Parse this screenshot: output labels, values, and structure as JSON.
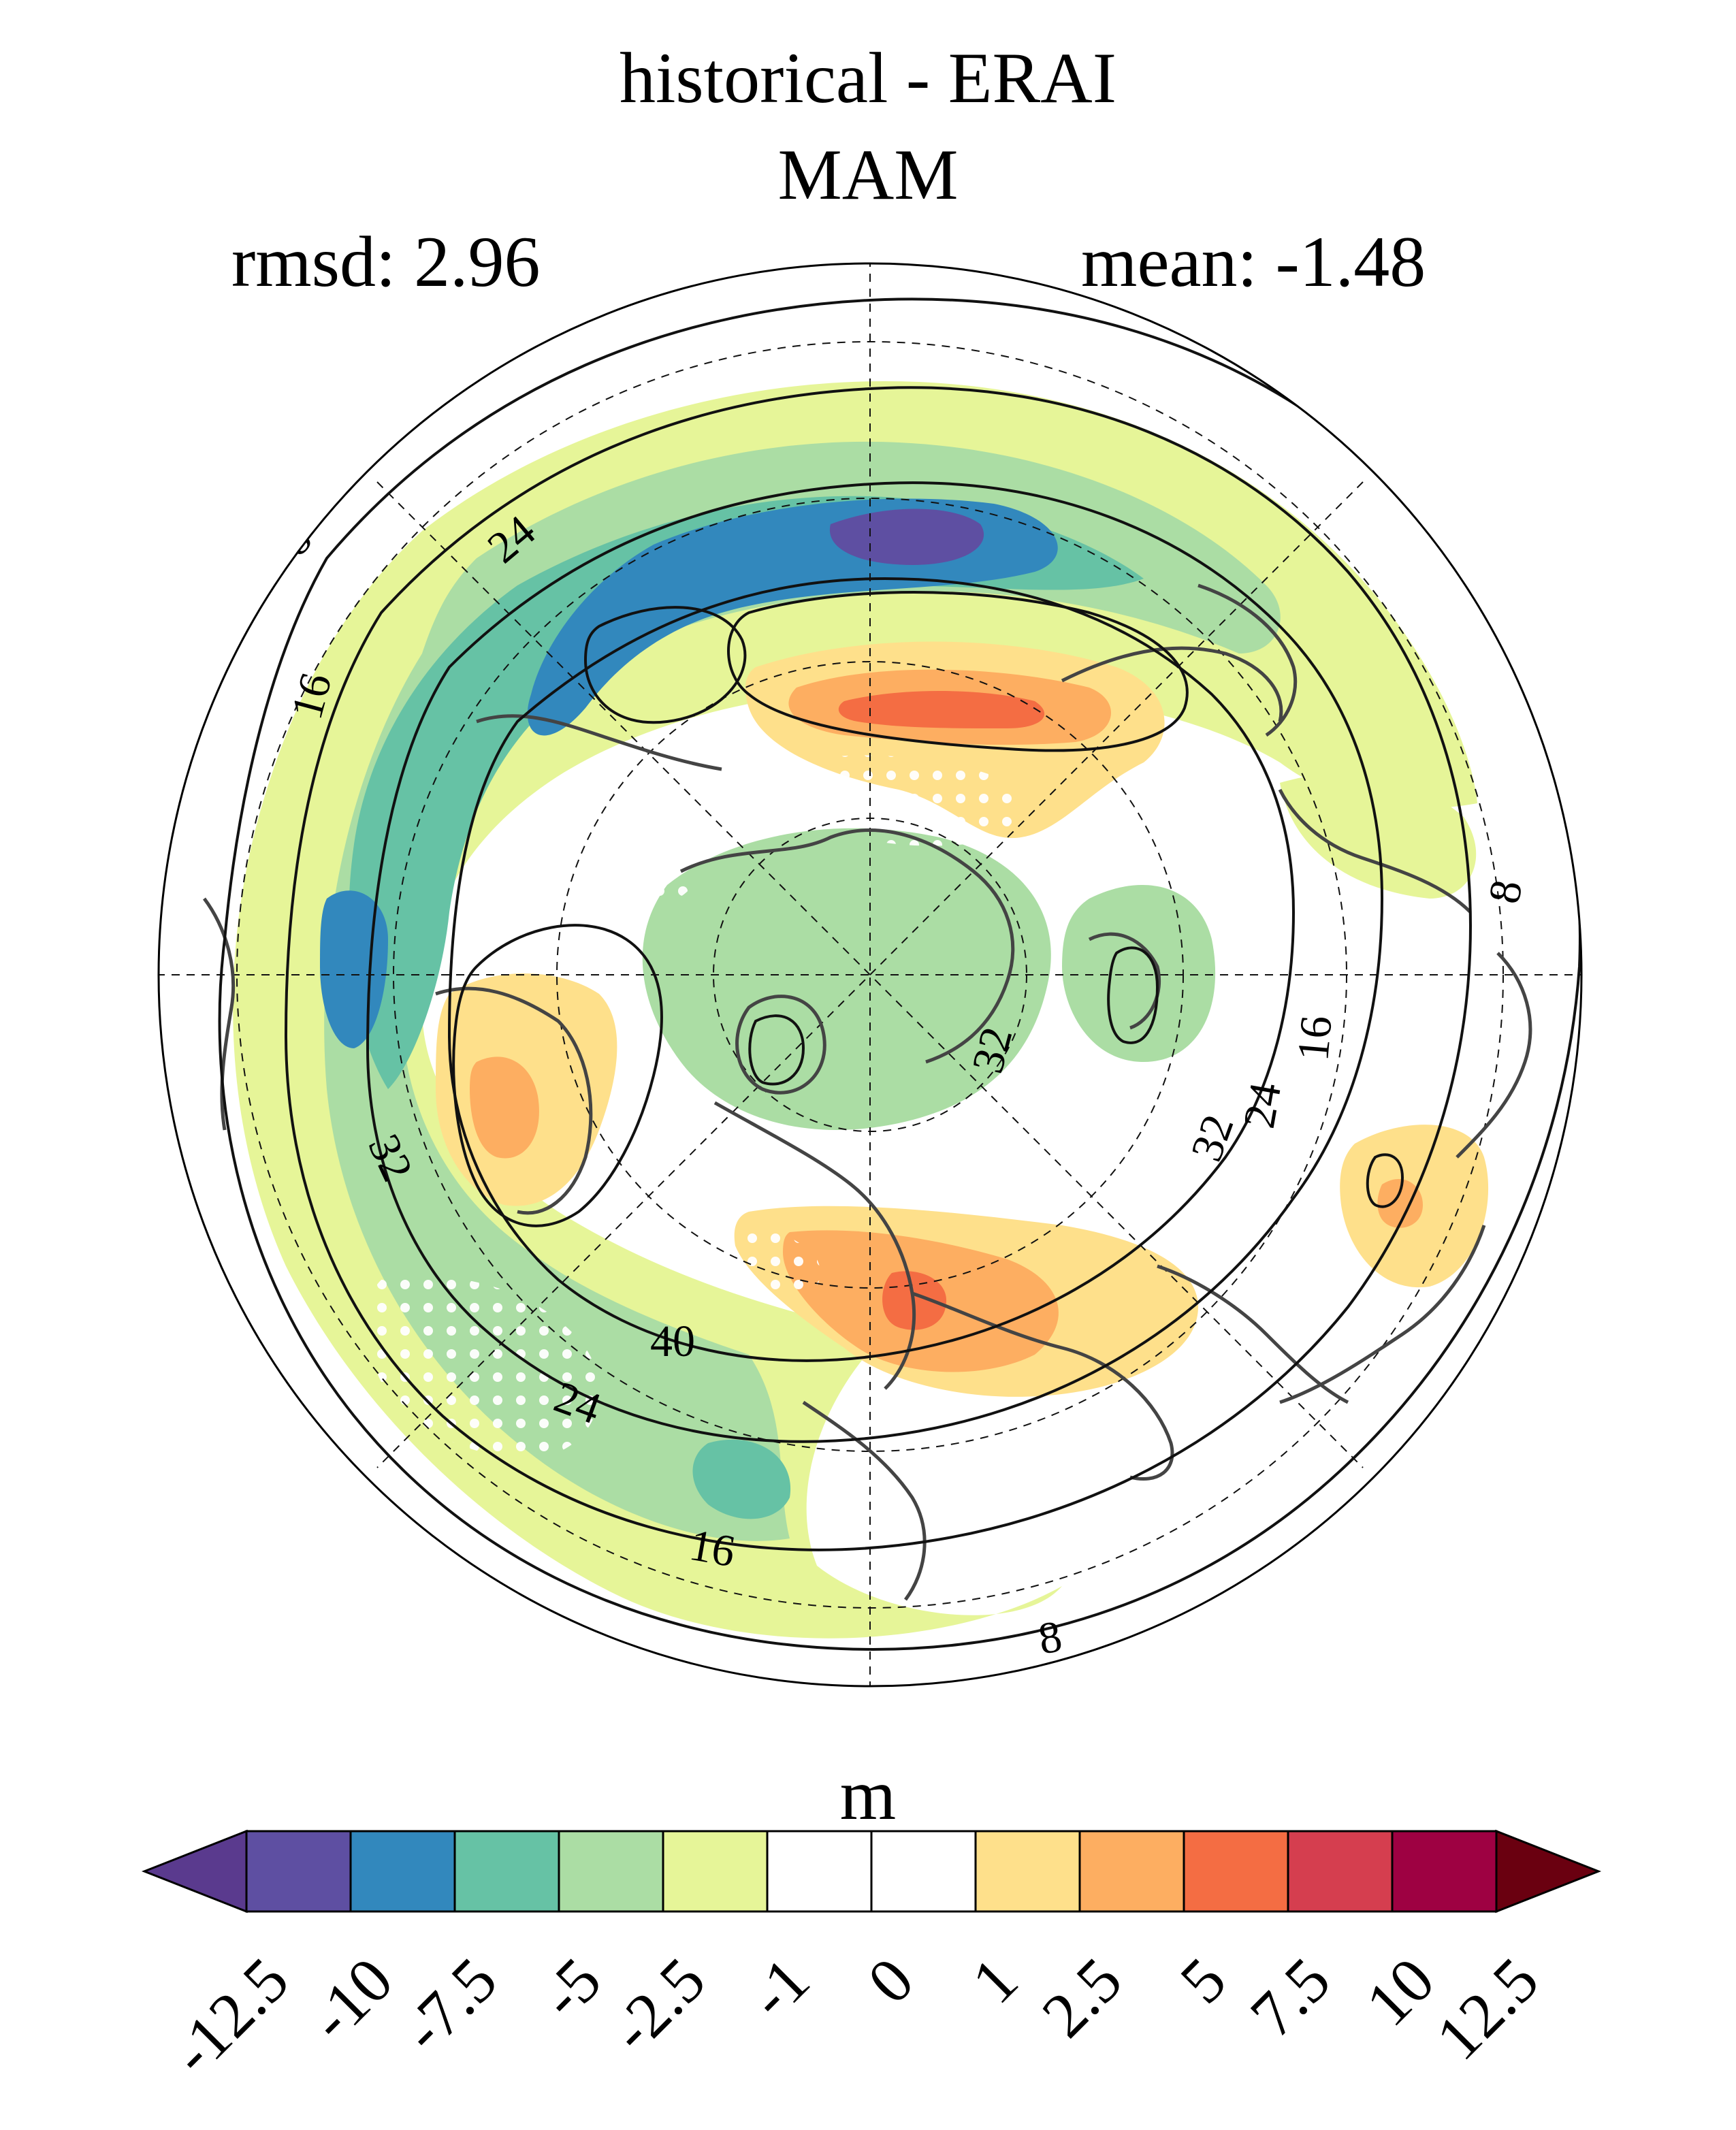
{
  "title": "historical - ERAI",
  "season": "MAM",
  "rmsd_text": "rmsd: 2.96",
  "mean_text": "mean: -1.48",
  "colorbar": {
    "unit": "m",
    "tick_labels": [
      "-12.5",
      "-10",
      "-7.5",
      "-5",
      "-2.5",
      "-1",
      "0",
      "1",
      "2.5",
      "5",
      "7.5",
      "10",
      "12.5"
    ],
    "colors": [
      "#5e4fa2",
      "#3288bd",
      "#66c2a5",
      "#abdda4",
      "#e6f598",
      "#ffffff",
      "#ffffff",
      "#fee08b",
      "#fdae61",
      "#f46d43",
      "#d53e4f",
      "#9e0142"
    ],
    "under_color": "#5a3a8e",
    "over_color": "#6a0010"
  },
  "contour_labels": [
    "8",
    "24",
    "16",
    "40",
    "32",
    "24",
    "16",
    "8",
    "32",
    "24",
    "16",
    "32",
    "8"
  ],
  "map": {
    "projection": "polar-stereographic",
    "hemisphere": "north",
    "stippling": "white-dots"
  }
}
